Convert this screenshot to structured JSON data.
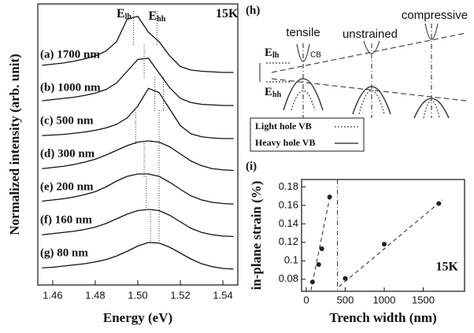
{
  "chart_data": [
    {
      "type": "line",
      "x_label": "Energy (eV)",
      "y_label": "Normalized intensity (arb. unit)",
      "annotations": [
        {
          "text": "E",
          "sub": "lh"
        },
        {
          "text": "E",
          "sub": "hh"
        },
        {
          "text": "15K"
        }
      ],
      "xlim": [
        1.453,
        1.547
      ],
      "xticks": [
        1.46,
        1.48,
        {
          "value": 1.5,
          "label": "1.50"
        },
        1.52,
        1.54
      ],
      "x": [
        1.455,
        1.46,
        1.465,
        1.47,
        1.475,
        1.48,
        1.485,
        1.49,
        1.495,
        1.5,
        1.505,
        1.51,
        1.515,
        1.52,
        1.525,
        1.53,
        1.535,
        1.54,
        1.545
      ],
      "series": [
        {
          "name": "(a) 1700 nm",
          "color": "#111111",
          "peaks": [
            1.498,
            1.509
          ],
          "values": [
            0.12,
            0.14,
            0.16,
            0.19,
            0.23,
            0.28,
            0.36,
            0.52,
            0.9,
            0.95,
            0.68,
            0.52,
            0.28,
            0.1,
            0.04,
            0.02,
            0.01,
            0,
            0
          ]
        },
        {
          "name": "(b) 1000 nm",
          "color": "#111111",
          "peaks": [
            1.503
          ],
          "values": [
            0.08,
            0.1,
            0.12,
            0.14,
            0.17,
            0.21,
            0.27,
            0.38,
            0.58,
            0.78,
            0.8,
            0.55,
            0.3,
            0.12,
            0.05,
            0.02,
            0.01,
            0,
            0
          ]
        },
        {
          "name": "(c) 500 nm",
          "color": "#111111",
          "peaks": [
            1.508,
            1.512
          ],
          "values": [
            0.05,
            0.06,
            0.07,
            0.09,
            0.11,
            0.14,
            0.18,
            0.24,
            0.35,
            0.55,
            0.85,
            0.78,
            0.5,
            0.22,
            0.08,
            0.03,
            0.01,
            0,
            0
          ]
        },
        {
          "name": "(d) 300 nm",
          "color": "#111111",
          "peaks": [
            1.499,
            1.51
          ],
          "values": [
            0.05,
            0.07,
            0.09,
            0.12,
            0.16,
            0.21,
            0.28,
            0.36,
            0.44,
            0.5,
            0.52,
            0.5,
            0.42,
            0.3,
            0.18,
            0.1,
            0.05,
            0.03,
            0.02
          ]
        },
        {
          "name": "(e) 200 nm",
          "color": "#111111",
          "peaks": [
            1.503,
            1.51
          ],
          "values": [
            0.06,
            0.08,
            0.1,
            0.13,
            0.17,
            0.22,
            0.3,
            0.4,
            0.48,
            0.52,
            0.52,
            0.48,
            0.38,
            0.26,
            0.15,
            0.08,
            0.04,
            0.02,
            0.01
          ]
        },
        {
          "name": "(f) 160 nm",
          "color": "#111111",
          "peaks": [
            1.504,
            1.51
          ],
          "values": [
            0.05,
            0.07,
            0.09,
            0.11,
            0.14,
            0.18,
            0.24,
            0.32,
            0.4,
            0.46,
            0.48,
            0.46,
            0.38,
            0.27,
            0.16,
            0.09,
            0.05,
            0.03,
            0.02
          ]
        },
        {
          "name": "(g) 80 nm",
          "color": "#111111",
          "peaks": [
            1.506,
            1.51
          ],
          "values": [
            0.05,
            0.06,
            0.08,
            0.1,
            0.12,
            0.15,
            0.19,
            0.25,
            0.33,
            0.42,
            0.48,
            0.47,
            0.4,
            0.3,
            0.2,
            0.12,
            0.07,
            0.04,
            0.03
          ]
        }
      ]
    },
    {
      "type": "scatter",
      "panel": "(i)",
      "x_label": "Trench width (nm)",
      "y_label": "in-plane strain (%)",
      "annotation": "15K",
      "xlim": [
        -60,
        2030
      ],
      "ylim": [
        0.067,
        0.188
      ],
      "xticks": [
        0,
        500,
        1000,
        1500
      ],
      "yticks": [
        0.08,
        0.1,
        0.12,
        0.14,
        0.16,
        0.18
      ],
      "color": "#222222",
      "x": [
        80,
        160,
        200,
        300,
        500,
        1000,
        1700
      ],
      "values": [
        0.077,
        0.096,
        0.113,
        0.169,
        0.081,
        0.118,
        0.162
      ],
      "fits": [
        {
          "x": [
            60,
            310
          ],
          "values": [
            0.068,
            0.172
          ]
        },
        {
          "x": [
            420,
            1750
          ],
          "values": [
            0.072,
            0.166
          ]
        }
      ],
      "vline": 400
    }
  ],
  "diagram": {
    "panel": "(h)",
    "tensile": "tensile",
    "unstrained": "unstrained",
    "compressive": "compressive",
    "cb": "CB",
    "e_lh": {
      "text": "E",
      "sub": "lh"
    },
    "e_hh": {
      "text": "E",
      "sub": "hh"
    },
    "legend": [
      "Light hole VB",
      "Heavy hole VB"
    ]
  }
}
